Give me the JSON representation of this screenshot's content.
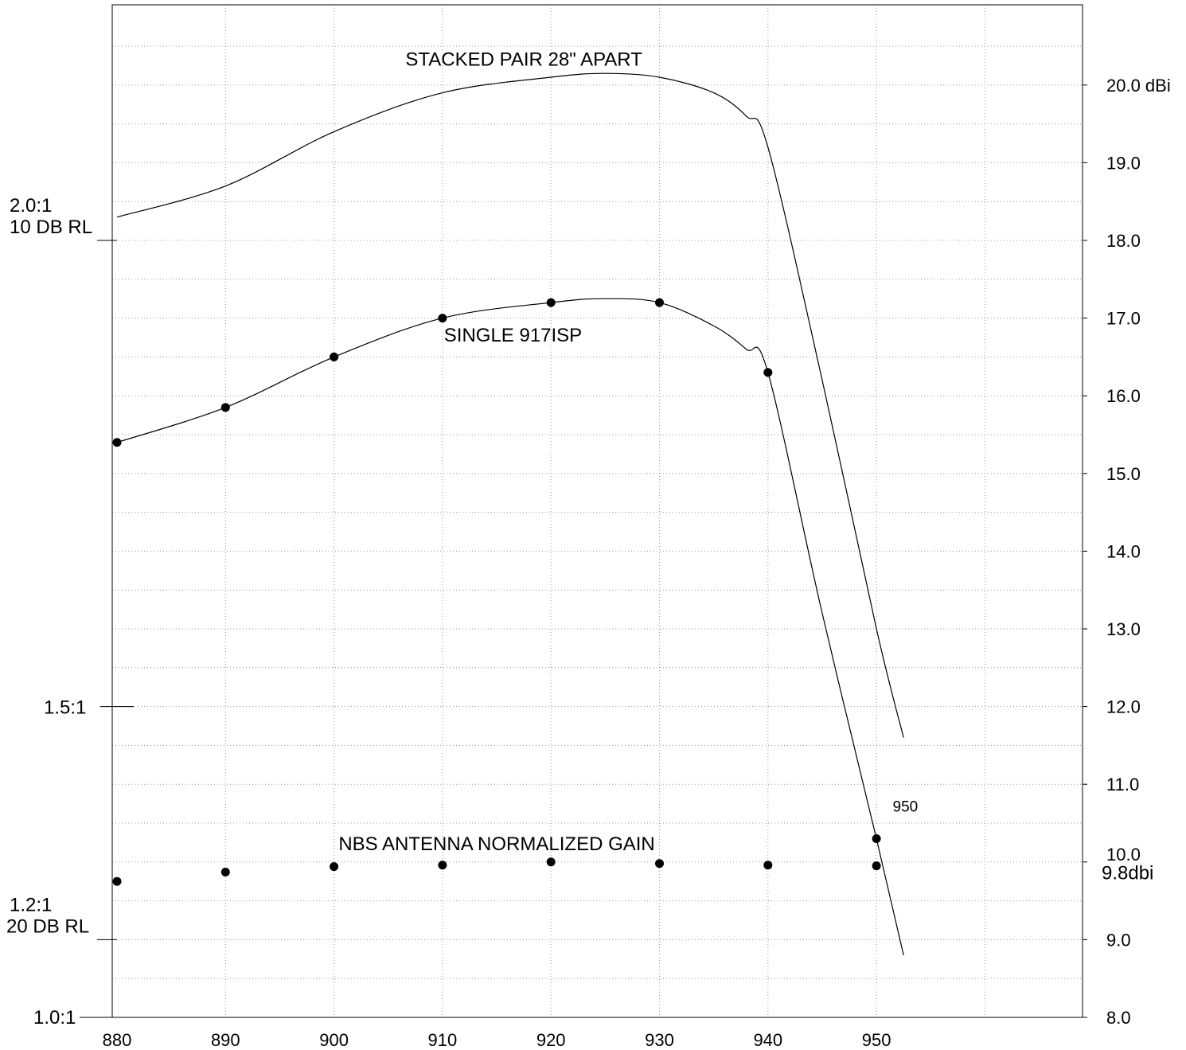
{
  "chart_data": {
    "type": "line",
    "title": "",
    "xlabel": "",
    "ylabel": "",
    "x_ticks": [
      "880",
      "890",
      "900",
      "910",
      "920",
      "930",
      "940",
      "950"
    ],
    "xlim": [
      880,
      960
    ],
    "y_right_ticks": [
      "8.0",
      "9.0",
      "10.0",
      "11.0",
      "12.0",
      "13.0",
      "14.0",
      "15.0",
      "16.0",
      "17.0",
      "18.0",
      "19.0",
      "20.0 dBi"
    ],
    "ylim": [
      8.0,
      20.9
    ],
    "y_left_labels": [
      {
        "lines": [
          "2.0:1",
          "10 DB RL"
        ],
        "y": 18.0
      },
      {
        "lines": [
          "1.5:1"
        ],
        "y": 12.0
      },
      {
        "lines": [
          "1.2:1",
          "20 DB RL"
        ],
        "y": 9.0
      },
      {
        "lines": [
          "1.0:1"
        ],
        "y": 8.0
      }
    ],
    "grid": true,
    "series": [
      {
        "name": "STACKED PAIR 28\" APART",
        "markers": false,
        "x": [
          880,
          890,
          900,
          910,
          920,
          925,
          930,
          935,
          938,
          940,
          945,
          950,
          952.5
        ],
        "y": [
          18.3,
          18.7,
          19.4,
          19.9,
          20.1,
          20.15,
          20.1,
          19.9,
          19.6,
          19.2,
          16.2,
          13.0,
          11.6
        ]
      },
      {
        "name": "SINGLE 917ISP",
        "markers": true,
        "marker_x": [
          880,
          890,
          900,
          910,
          920,
          930,
          940
        ],
        "marker_y": [
          15.4,
          15.85,
          16.5,
          17.0,
          17.2,
          17.2,
          16.3
        ],
        "x": [
          880,
          890,
          900,
          910,
          920,
          925,
          930,
          935,
          938,
          940,
          945,
          950,
          952.5
        ],
        "y": [
          15.4,
          15.85,
          16.5,
          17.0,
          17.2,
          17.25,
          17.2,
          16.9,
          16.6,
          16.3,
          13.2,
          10.3,
          8.8
        ]
      },
      {
        "name": "NBS ANTENNA NORMALIZED GAIN",
        "markers": true,
        "line": false,
        "marker_x": [
          880,
          890,
          900,
          910,
          920,
          930,
          940,
          950
        ],
        "marker_y": [
          9.75,
          9.87,
          9.94,
          9.96,
          10.0,
          9.98,
          9.96,
          9.95
        ]
      }
    ],
    "annotations": [
      {
        "text": "STACKED PAIR 28\" APART",
        "x": 917.5,
        "y": 20.25
      },
      {
        "text": "SINGLE 917ISP",
        "x": 916.5,
        "y": 16.7
      },
      {
        "text": "NBS ANTENNA NORMALIZED GAIN",
        "x": 915,
        "y": 10.15
      },
      {
        "text": "950",
        "x": 951.5,
        "y": 10.65
      },
      {
        "text": "9.8dbi",
        "x": 962.5,
        "y": 9.78
      }
    ],
    "point_950": {
      "x": 950,
      "y": 10.3
    }
  }
}
